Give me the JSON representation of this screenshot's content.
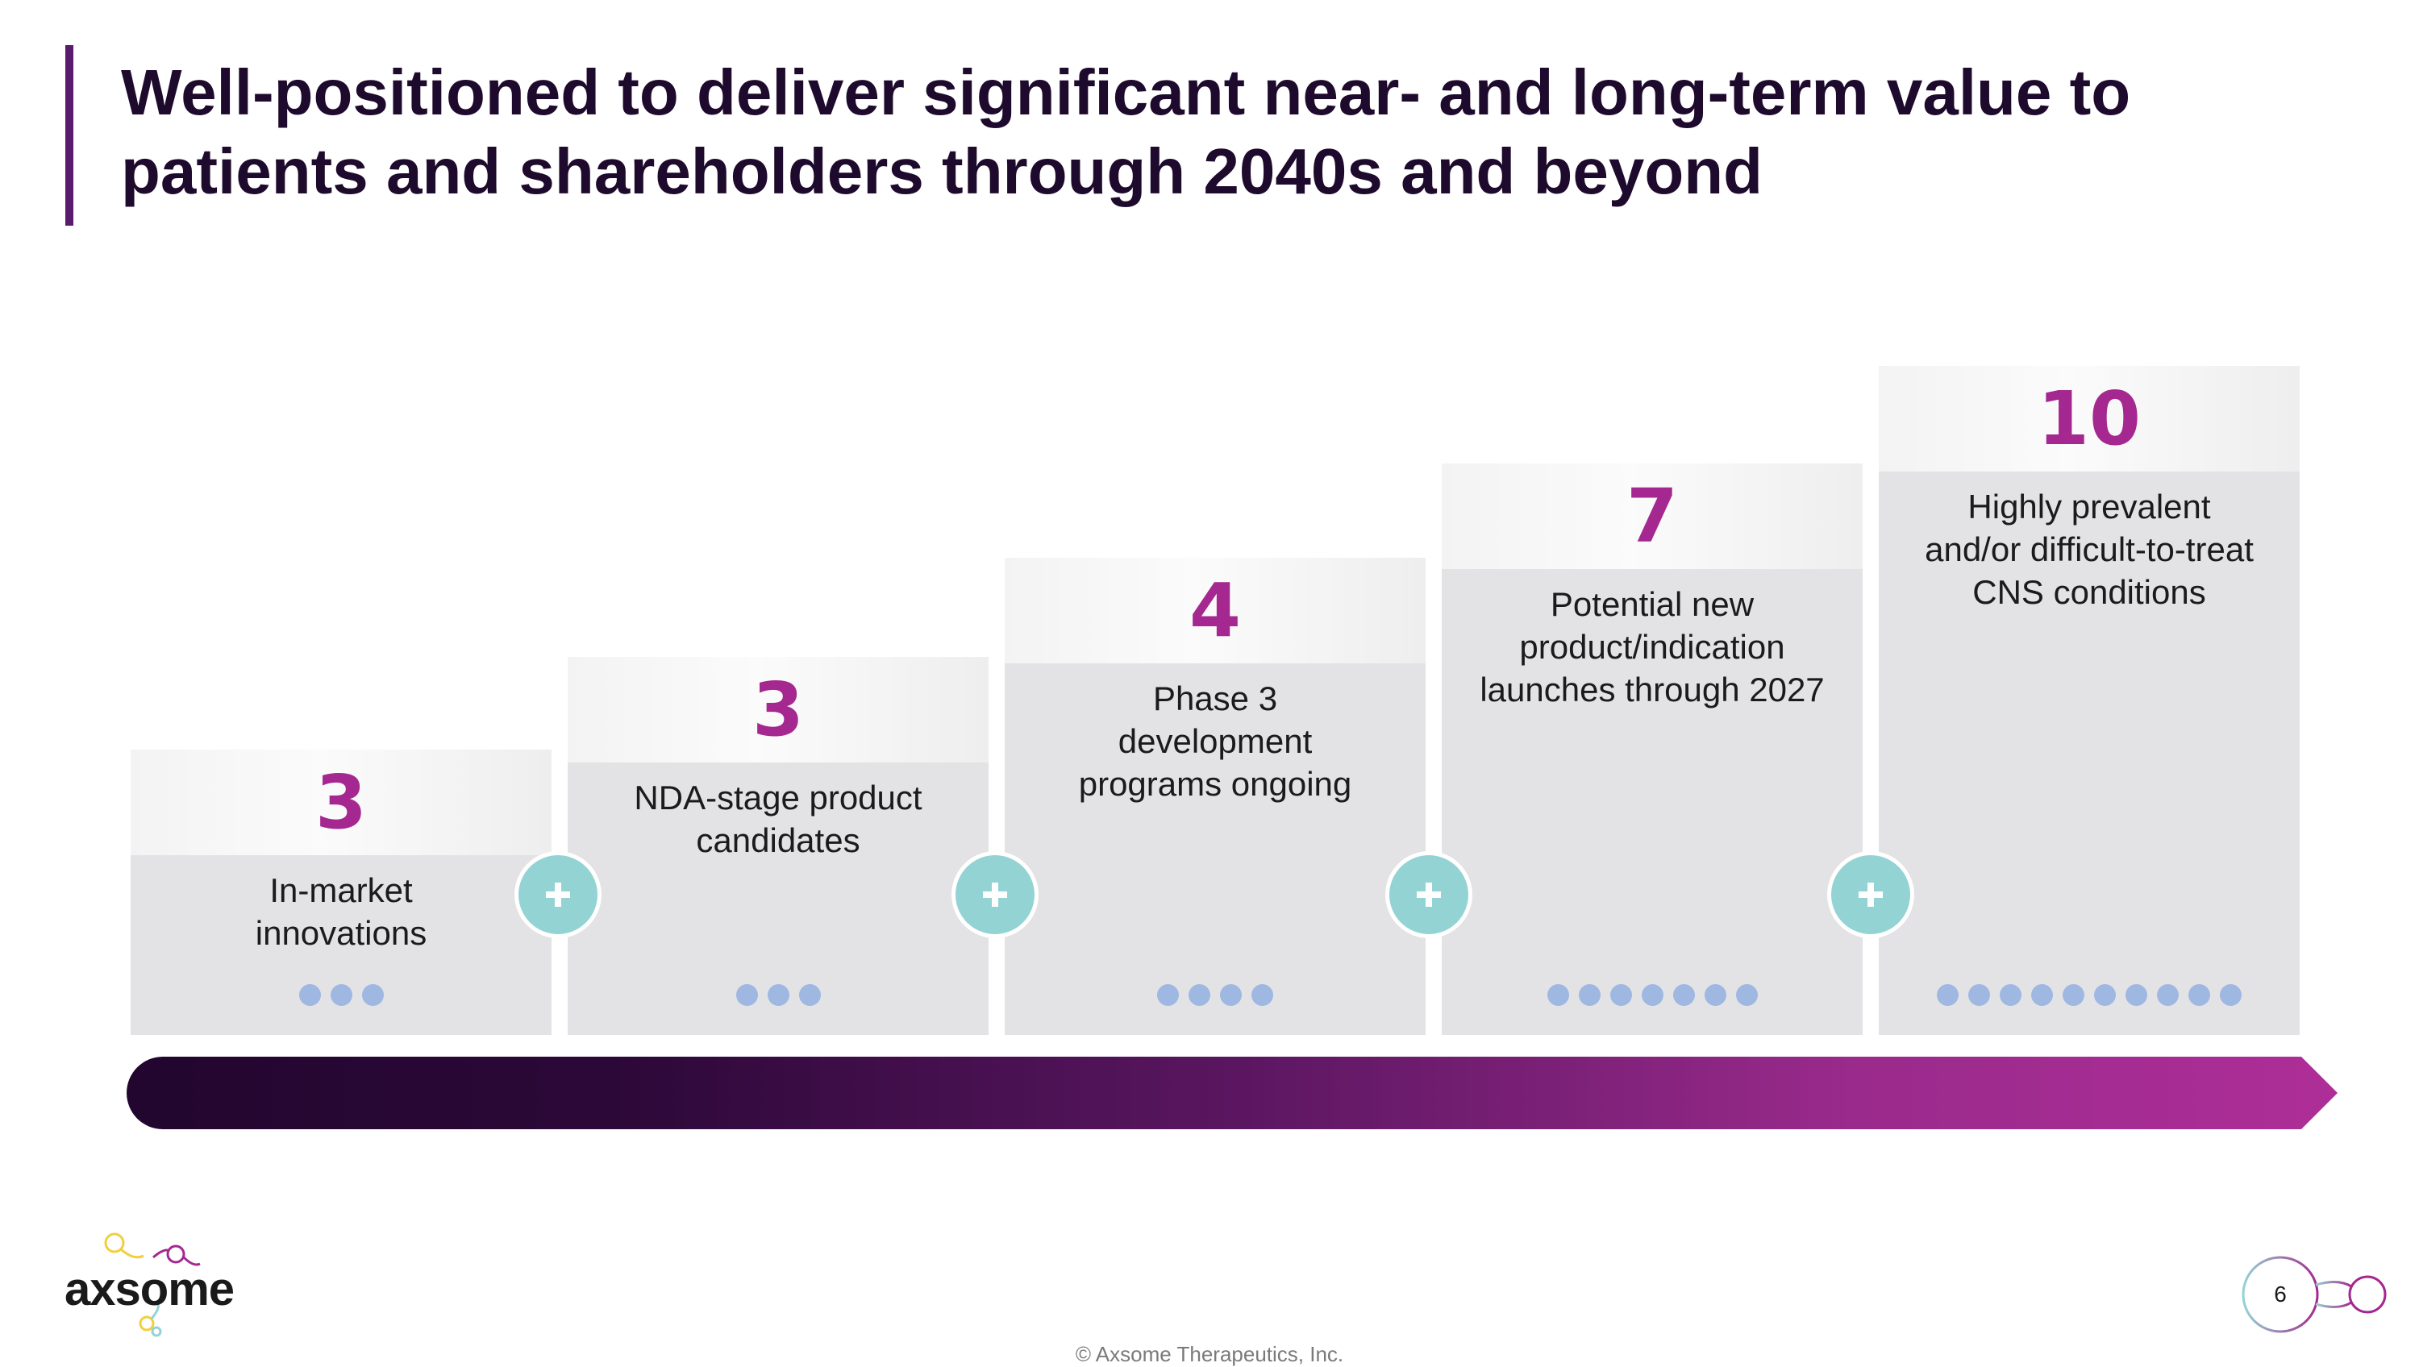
{
  "title": "Well-positioned to deliver significant near- and long-term value to patients and shareholders through 2040s and beyond",
  "steps": [
    {
      "number": "3",
      "label": "In-market\ninnovations",
      "dot_count": 3
    },
    {
      "number": "3",
      "label": "NDA-stage product\ncandidates",
      "dot_count": 3
    },
    {
      "number": "4",
      "label": "Phase 3\ndevelopment\nprograms ongoing",
      "dot_count": 4
    },
    {
      "number": "7",
      "label": "Potential new\nproduct/indication\nlaunches through 2027",
      "dot_count": 7
    },
    {
      "number": "10",
      "label": "Highly prevalent\nand/or difficult-to-treat\nCNS conditions",
      "dot_count": 10
    }
  ],
  "plus_symbol": "+",
  "colors": {
    "accent": "#a4288f",
    "dark": "#1e0a2c",
    "teal": "#94d3d4",
    "dot": "#9eb8e2",
    "card": "#e3e3e5"
  },
  "logo_text": "axsome",
  "footer": "© Axsome Therapeutics, Inc.",
  "page_number": "6"
}
